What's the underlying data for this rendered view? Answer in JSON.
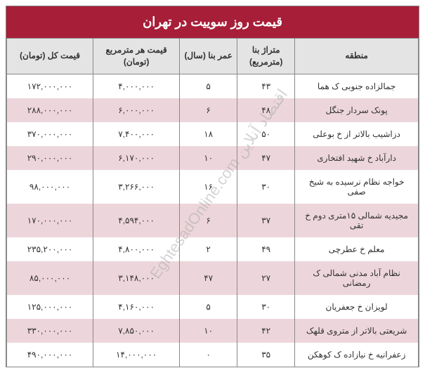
{
  "title": "قیمت روز سوییت در تهران",
  "watermark": "EghtesadOnline.com اقتصاد آنلاین",
  "colors": {
    "header_bg": "#a71e38",
    "header_text": "#ffffff",
    "col_header_bg": "#e4e4e4",
    "row_odd_bg": "#ffffff",
    "row_even_bg": "#edd6db",
    "border": "#888888",
    "text": "#333333"
  },
  "columns": [
    {
      "key": "region",
      "label": "منطقه",
      "width": "30%"
    },
    {
      "key": "area",
      "label": "متراژ بنا\n(مترمربع)",
      "width": "14%"
    },
    {
      "key": "age",
      "label": "عمر بنا\n(سال)",
      "width": "14%"
    },
    {
      "key": "price_sqm",
      "label": "قیمت هر مترمربع\n(تومان)",
      "width": "21%"
    },
    {
      "key": "total",
      "label": "قیمت کل (تومان)",
      "width": "21%"
    }
  ],
  "rows": [
    {
      "region": "جمالزاده جنوبی ک هما",
      "area": "۴۳",
      "age": "۵",
      "price_sqm": "۴,۰۰۰,۰۰۰",
      "total": "۱۷۲,۰۰۰,۰۰۰"
    },
    {
      "region": "پونک سردار جنگل",
      "area": "۴۸",
      "age": "۶",
      "price_sqm": "۶,۰۰۰,۰۰۰",
      "total": "۲۸۸,۰۰۰,۰۰۰"
    },
    {
      "region": "دزاشیب بالاتر از خ بوعلی",
      "area": "۵۰",
      "age": "۱۸",
      "price_sqm": "۷,۴۰۰,۰۰۰",
      "total": "۳۷۰,۰۰۰,۰۰۰"
    },
    {
      "region": "دارآباد خ شهید افتخاری",
      "area": "۴۷",
      "age": "۱۰",
      "price_sqm": "۶,۱۷۰,۰۰۰",
      "total": "۲۹۰,۰۰۰,۰۰۰"
    },
    {
      "region": "خواجه نظام نرسیده به شیخ صفی",
      "area": "۳۰",
      "age": "۱۶",
      "price_sqm": "۳,۲۶۶,۰۰۰",
      "total": "۹۸,۰۰۰,۰۰۰"
    },
    {
      "region": "مجیدیه شمالی ۱۵متری دوم خ تقی",
      "area": "۳۷",
      "age": "۶",
      "price_sqm": "۴,۵۹۴,۰۰۰",
      "total": "۱۷۰,۰۰۰,۰۰۰"
    },
    {
      "region": "معلم خ عطرچی",
      "area": "۴۹",
      "age": "۲",
      "price_sqm": "۴,۸۰۰,۰۰۰",
      "total": "۲۳۵,۲۰۰,۰۰۰"
    },
    {
      "region": "نظام آباد مدنی شمالی ک رمضانی",
      "area": "۲۷",
      "age": "۴۷",
      "price_sqm": "۳,۱۴۸,۰۰۰",
      "total": "۸۵,۰۰۰,۰۰۰"
    },
    {
      "region": "لویزان خ جعفریان",
      "area": "۳۰",
      "age": "۵",
      "price_sqm": "۴,۱۶۰,۰۰۰",
      "total": "۱۲۵,۰۰۰,۰۰۰"
    },
    {
      "region": "شریعتی بالاتر از متروی قلهک",
      "area": "۴۲",
      "age": "۱۰",
      "price_sqm": "۷,۸۵۰,۰۰۰",
      "total": "۳۳۰,۰۰۰,۰۰۰"
    },
    {
      "region": "زعفرانیه خ نیازاده ک کوهکن",
      "area": "۳۵",
      "age": "۰",
      "price_sqm": "۱۴,۰۰۰,۰۰۰",
      "total": "۴۹۰,۰۰۰,۰۰۰"
    }
  ]
}
